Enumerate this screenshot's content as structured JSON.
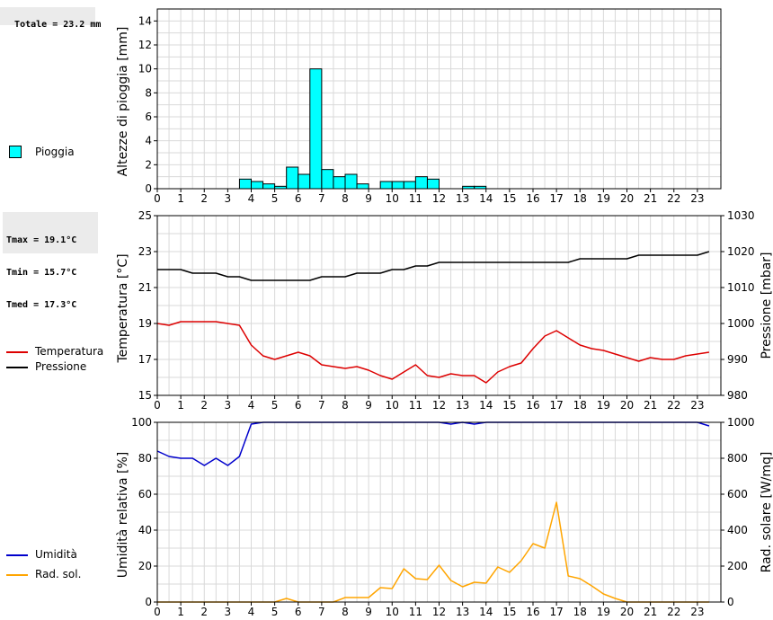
{
  "stats": {
    "rain_total": "Totale = 23.2 mm",
    "tmax": "Tmax = 19.1°C",
    "tmin": "Tmin = 15.7°C",
    "tmed": "Tmed = 17.3°C"
  },
  "legend": {
    "rain": "Pioggia",
    "temperature": "Temperatura",
    "pressure": "Pressione",
    "humidity": "Umidità",
    "radiation": "Rad. sol."
  },
  "colors": {
    "rain": "#00ffff",
    "temperature": "#dd0000",
    "pressure": "#000000",
    "humidity": "#0000cc",
    "radiation": "#ffa500",
    "grid": "#d9d9d9"
  },
  "chart_data": [
    {
      "type": "bar",
      "ylabel": "Altezze di pioggia [mm]",
      "xlim": [
        0,
        24
      ],
      "ylim": [
        0,
        15
      ],
      "x_ticks": [
        0,
        1,
        2,
        3,
        4,
        5,
        6,
        7,
        8,
        9,
        10,
        11,
        12,
        13,
        14,
        15,
        16,
        17,
        18,
        19,
        20,
        21,
        22,
        23
      ],
      "y_ticks": [
        0,
        2,
        4,
        6,
        8,
        10,
        12,
        14
      ],
      "bin_width": 0.5,
      "series": [
        {
          "name": "Pioggia",
          "x": [
            3.5,
            4.0,
            4.5,
            5.0,
            5.5,
            6.0,
            6.5,
            7.0,
            7.5,
            8.0,
            8.5,
            9.5,
            10.0,
            10.5,
            11.0,
            11.5,
            13.0,
            13.5
          ],
          "values": [
            0.8,
            0.6,
            0.4,
            0.2,
            1.8,
            1.2,
            10.0,
            1.6,
            1.0,
            1.2,
            0.4,
            0.6,
            0.6,
            0.6,
            1.0,
            0.8,
            0.2,
            0.2
          ]
        }
      ]
    },
    {
      "type": "line",
      "ylabel": "Temperatura [°C]",
      "y2label": "Pressione [mbar]",
      "xlim": [
        0,
        24
      ],
      "ylim": [
        15,
        25
      ],
      "y2lim": [
        980,
        1030
      ],
      "x_ticks": [
        0,
        1,
        2,
        3,
        4,
        5,
        6,
        7,
        8,
        9,
        10,
        11,
        12,
        13,
        14,
        15,
        16,
        17,
        18,
        19,
        20,
        21,
        22,
        23
      ],
      "y_ticks": [
        15,
        17,
        19,
        21,
        23,
        25
      ],
      "y2_ticks": [
        980,
        990,
        1000,
        1010,
        1020,
        1030
      ],
      "series": [
        {
          "name": "Temperatura",
          "axis": "left",
          "x": [
            0,
            0.5,
            1,
            1.5,
            2,
            2.5,
            3,
            3.5,
            4,
            4.5,
            5,
            5.5,
            6,
            6.5,
            7,
            7.5,
            8,
            8.5,
            9,
            9.5,
            10,
            10.5,
            11,
            11.5,
            12,
            12.5,
            13,
            13.5,
            14,
            14.5,
            15,
            15.5,
            16,
            16.5,
            17,
            17.5,
            18,
            18.5,
            19,
            19.5,
            20,
            20.5,
            21,
            21.5,
            22,
            22.5,
            23,
            23.5
          ],
          "values": [
            19.0,
            18.9,
            19.1,
            19.1,
            19.1,
            19.1,
            19.0,
            18.9,
            17.8,
            17.2,
            17.0,
            17.2,
            17.4,
            17.2,
            16.7,
            16.6,
            16.5,
            16.6,
            16.4,
            16.1,
            15.9,
            16.3,
            16.7,
            16.1,
            16.0,
            16.2,
            16.1,
            16.1,
            15.7,
            16.3,
            16.6,
            16.8,
            17.6,
            18.3,
            18.6,
            18.2,
            17.8,
            17.6,
            17.5,
            17.3,
            17.1,
            16.9,
            17.1,
            17.0,
            17.0,
            17.2,
            17.3,
            17.4
          ]
        },
        {
          "name": "Pressione",
          "axis": "right",
          "x": [
            0,
            0.5,
            1,
            1.5,
            2,
            2.5,
            3,
            3.5,
            4,
            4.5,
            5,
            5.5,
            6,
            6.5,
            7,
            7.5,
            8,
            8.5,
            9,
            9.5,
            10,
            10.5,
            11,
            11.5,
            12,
            12.5,
            13,
            13.5,
            14,
            14.5,
            15,
            15.5,
            16,
            16.5,
            17,
            17.5,
            18,
            18.5,
            19,
            19.5,
            20,
            20.5,
            21,
            21.5,
            22,
            22.5,
            23,
            23.5
          ],
          "values": [
            1015,
            1015,
            1015,
            1014,
            1014,
            1014,
            1013,
            1013,
            1012,
            1012,
            1012,
            1012,
            1012,
            1012,
            1013,
            1013,
            1013,
            1014,
            1014,
            1014,
            1015,
            1015,
            1016,
            1016,
            1017,
            1017,
            1017,
            1017,
            1017,
            1017,
            1017,
            1017,
            1017,
            1017,
            1017,
            1017,
            1018,
            1018,
            1018,
            1018,
            1018,
            1019,
            1019,
            1019,
            1019,
            1019,
            1019,
            1020
          ]
        }
      ]
    },
    {
      "type": "line",
      "ylabel": "Umidità relativa [%]",
      "y2label": "Rad. solare [W/mq]",
      "xlim": [
        0,
        24
      ],
      "ylim": [
        0,
        100
      ],
      "y2lim": [
        0,
        1000
      ],
      "x_ticks": [
        0,
        1,
        2,
        3,
        4,
        5,
        6,
        7,
        8,
        9,
        10,
        11,
        12,
        13,
        14,
        15,
        16,
        17,
        18,
        19,
        20,
        21,
        22,
        23
      ],
      "y_ticks": [
        0,
        20,
        40,
        60,
        80,
        100
      ],
      "y2_ticks": [
        0,
        200,
        400,
        600,
        800,
        1000
      ],
      "series": [
        {
          "name": "Umidità",
          "axis": "left",
          "x": [
            0,
            0.5,
            1,
            1.5,
            2,
            2.5,
            3,
            3.5,
            4,
            4.5,
            5,
            5.5,
            6,
            6.5,
            7,
            7.5,
            8,
            8.5,
            9,
            9.5,
            10,
            10.5,
            11,
            11.5,
            12,
            12.5,
            13,
            13.5,
            14,
            14.5,
            15,
            15.5,
            16,
            16.5,
            17,
            17.5,
            18,
            18.5,
            19,
            19.5,
            20,
            20.5,
            21,
            21.5,
            22,
            22.5,
            23,
            23.5
          ],
          "values": [
            84,
            81,
            80,
            80,
            76,
            80,
            76,
            81,
            99,
            100,
            100,
            100,
            100,
            100,
            100,
            100,
            100,
            100,
            100,
            100,
            100,
            100,
            100,
            100,
            100,
            99,
            100,
            99,
            100,
            100,
            100,
            100,
            100,
            100,
            100,
            100,
            100,
            100,
            100,
            100,
            100,
            100,
            100,
            100,
            100,
            100,
            100,
            98
          ]
        },
        {
          "name": "Rad. sol.",
          "axis": "right",
          "x": [
            0,
            0.5,
            1,
            1.5,
            2,
            2.5,
            3,
            3.5,
            4,
            4.5,
            5,
            5.5,
            6,
            6.5,
            7,
            7.5,
            8,
            8.5,
            9,
            9.5,
            10,
            10.5,
            11,
            11.5,
            12,
            12.5,
            13,
            13.5,
            14,
            14.5,
            15,
            15.5,
            16,
            16.5,
            17,
            17.5,
            18,
            18.5,
            19,
            19.5,
            20,
            20.5,
            21,
            21.5,
            22,
            22.5,
            23,
            23.5
          ],
          "values": [
            0,
            0,
            0,
            0,
            0,
            0,
            0,
            0,
            0,
            0,
            0,
            20,
            0,
            0,
            0,
            0,
            25,
            25,
            25,
            80,
            75,
            185,
            130,
            125,
            205,
            120,
            85,
            110,
            105,
            195,
            165,
            230,
            325,
            300,
            555,
            145,
            130,
            90,
            45,
            20,
            0,
            0,
            0,
            0,
            0,
            0,
            0,
            0
          ]
        }
      ]
    }
  ]
}
